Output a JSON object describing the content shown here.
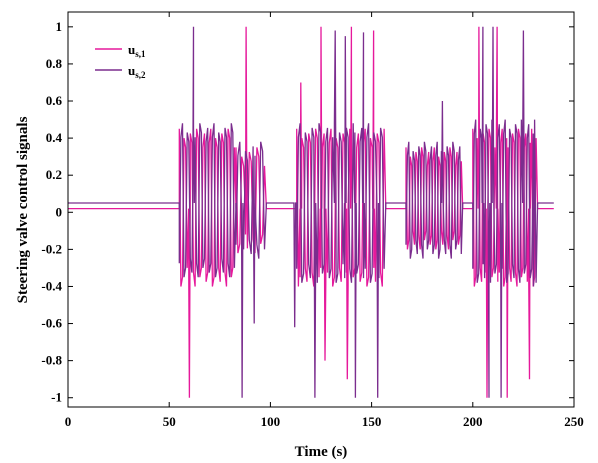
{
  "chart_data": {
    "type": "line",
    "title": "",
    "xlabel": "Time (s)",
    "ylabel": "Steering valve control signals",
    "xlim": [
      0,
      250
    ],
    "ylim": [
      -1.05,
      1.08
    ],
    "xticks": [
      0,
      50,
      100,
      150,
      200,
      250
    ],
    "yticks": [
      -1,
      -0.8,
      -0.6,
      -0.4,
      -0.2,
      0,
      0.2,
      0.4,
      0.6,
      0.8,
      1
    ],
    "xtick_labels": [
      "0",
      "50",
      "100",
      "150",
      "200",
      "250"
    ],
    "ytick_labels": [
      "-1",
      "-0.8",
      "-0.6",
      "-0.4",
      "-0.2",
      "0",
      "0.2",
      "0.4",
      "0.6",
      "0.8",
      "1"
    ],
    "grid": false,
    "legend_position": "top-left",
    "series": [
      {
        "name": "u",
        "subscript": "s,1",
        "color": "#e6199b",
        "baseline": 0.02,
        "idle_segments": [
          [
            0,
            55
          ],
          [
            98,
            113
          ],
          [
            157,
            167
          ],
          [
            195,
            200
          ],
          [
            232,
            240
          ]
        ],
        "bursts": [
          {
            "start": 55,
            "end": 83,
            "low": -0.4,
            "high": 0.45,
            "cycles": 18,
            "spikes": [
              {
                "t": 60,
                "v": -1.0
              }
            ]
          },
          {
            "start": 83,
            "end": 98,
            "low": -0.22,
            "high": 0.35,
            "cycles": 8,
            "spikes": [
              {
                "t": 88,
                "v": 1.0
              }
            ]
          },
          {
            "start": 113,
            "end": 157,
            "low": -0.4,
            "high": 0.45,
            "cycles": 26,
            "spikes": [
              {
                "t": 115,
                "v": 0.7
              },
              {
                "t": 125,
                "v": 1.0
              },
              {
                "t": 140,
                "v": 1.0
              },
              {
                "t": 151,
                "v": 0.98
              },
              {
                "t": 127,
                "v": -0.8
              },
              {
                "t": 138,
                "v": -0.9
              }
            ]
          },
          {
            "start": 167,
            "end": 195,
            "low": -0.2,
            "high": 0.35,
            "cycles": 20,
            "spikes": []
          },
          {
            "start": 200,
            "end": 232,
            "low": -0.4,
            "high": 0.45,
            "cycles": 22,
            "spikes": [
              {
                "t": 203,
                "v": 1.0
              },
              {
                "t": 207,
                "v": -1.0
              },
              {
                "t": 212,
                "v": 1.0
              },
              {
                "t": 217,
                "v": -1.0
              },
              {
                "t": 228,
                "v": -0.9
              }
            ]
          }
        ]
      },
      {
        "name": "u",
        "subscript": "s,2",
        "color": "#7b2d8e",
        "baseline": 0.05,
        "idle_segments": [
          [
            0,
            55
          ],
          [
            98,
            113
          ],
          [
            157,
            167
          ],
          [
            195,
            200
          ],
          [
            232,
            240
          ]
        ],
        "bursts": [
          {
            "start": 55,
            "end": 83,
            "low": -0.35,
            "high": 0.48,
            "cycles": 18,
            "spikes": [
              {
                "t": 62,
                "v": 1.0
              }
            ]
          },
          {
            "start": 83,
            "end": 98,
            "low": -0.25,
            "high": 0.38,
            "cycles": 8,
            "spikes": [
              {
                "t": 86,
                "v": -1.0
              },
              {
                "t": 92,
                "v": -0.6
              }
            ]
          },
          {
            "start": 113,
            "end": 157,
            "low": -0.38,
            "high": 0.48,
            "cycles": 26,
            "spikes": [
              {
                "t": 112,
                "v": -0.62
              },
              {
                "t": 122,
                "v": -1.0
              },
              {
                "t": 132,
                "v": 0.98
              },
              {
                "t": 137,
                "v": 0.95
              },
              {
                "t": 142,
                "v": -1.0
              },
              {
                "t": 146,
                "v": 0.97
              },
              {
                "t": 153,
                "v": -1.0
              }
            ]
          },
          {
            "start": 167,
            "end": 195,
            "low": -0.25,
            "high": 0.38,
            "cycles": 20,
            "spikes": [
              {
                "t": 185,
                "v": 0.6
              }
            ]
          },
          {
            "start": 200,
            "end": 232,
            "low": -0.38,
            "high": 0.5,
            "cycles": 22,
            "spikes": [
              {
                "t": 205,
                "v": 1.0
              },
              {
                "t": 208,
                "v": -1.0
              },
              {
                "t": 210,
                "v": 1.0
              },
              {
                "t": 214,
                "v": -1.0
              },
              {
                "t": 225,
                "v": 0.98
              },
              {
                "t": 230,
                "v": -0.4
              }
            ]
          }
        ]
      }
    ]
  }
}
